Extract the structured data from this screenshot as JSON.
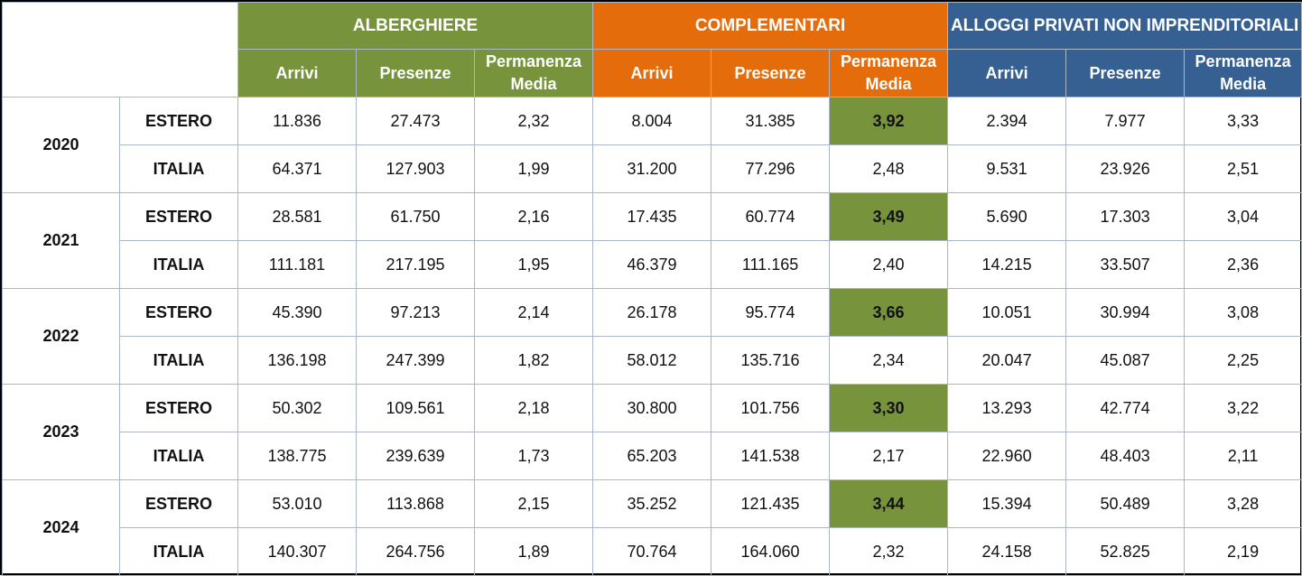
{
  "colors": {
    "alberghiere": "#77933c",
    "complementari": "#e46c0a",
    "alloggi": "#376092",
    "highlight": "#77933c"
  },
  "header": {
    "groups": [
      "ALBERGHIERE",
      "COMPLEMENTARI",
      "ALLOGGI PRIVATI NON IMPRENDITORIALI"
    ],
    "sub": {
      "arrivi": "Arrivi",
      "presenze": "Presenze",
      "permanenza": "Permanenza Media"
    }
  },
  "chart_data": {
    "type": "table",
    "columns": [
      "ALBERGHIERE Arrivi",
      "ALBERGHIERE Presenze",
      "ALBERGHIERE Permanenza Media",
      "COMPLEMENTARI Arrivi",
      "COMPLEMENTARI Presenze",
      "COMPLEMENTARI Permanenza Media",
      "ALLOGGI PRIVATI NON IMPRENDITORIALI Arrivi",
      "ALLOGGI PRIVATI NON IMPRENDITORIALI Presenze",
      "ALLOGGI PRIVATI NON IMPRENDITORIALI Permanenza Media"
    ],
    "years": [
      {
        "year": "2020",
        "rows": [
          {
            "origin": "ESTERO",
            "values": [
              "11.836",
              "27.473",
              "2,32",
              "8.004",
              "31.385",
              "3,92",
              "2.394",
              "7.977",
              "3,33"
            ],
            "highlight": [
              5
            ]
          },
          {
            "origin": "ITALIA",
            "values": [
              "64.371",
              "127.903",
              "1,99",
              "31.200",
              "77.296",
              "2,48",
              "9.531",
              "23.926",
              "2,51"
            ],
            "highlight": []
          }
        ]
      },
      {
        "year": "2021",
        "rows": [
          {
            "origin": "ESTERO",
            "values": [
              "28.581",
              "61.750",
              "2,16",
              "17.435",
              "60.774",
              "3,49",
              "5.690",
              "17.303",
              "3,04"
            ],
            "highlight": [
              5
            ]
          },
          {
            "origin": "ITALIA",
            "values": [
              "111.181",
              "217.195",
              "1,95",
              "46.379",
              "111.165",
              "2,40",
              "14.215",
              "33.507",
              "2,36"
            ],
            "highlight": []
          }
        ]
      },
      {
        "year": "2022",
        "rows": [
          {
            "origin": "ESTERO",
            "values": [
              "45.390",
              "97.213",
              "2,14",
              "26.178",
              "95.774",
              "3,66",
              "10.051",
              "30.994",
              "3,08"
            ],
            "highlight": [
              5
            ]
          },
          {
            "origin": "ITALIA",
            "values": [
              "136.198",
              "247.399",
              "1,82",
              "58.012",
              "135.716",
              "2,34",
              "20.047",
              "45.087",
              "2,25"
            ],
            "highlight": []
          }
        ]
      },
      {
        "year": "2023",
        "rows": [
          {
            "origin": "ESTERO",
            "values": [
              "50.302",
              "109.561",
              "2,18",
              "30.800",
              "101.756",
              "3,30",
              "13.293",
              "42.774",
              "3,22"
            ],
            "highlight": [
              5
            ]
          },
          {
            "origin": "ITALIA",
            "values": [
              "138.775",
              "239.639",
              "1,73",
              "65.203",
              "141.538",
              "2,17",
              "22.960",
              "48.403",
              "2,11"
            ],
            "highlight": []
          }
        ]
      },
      {
        "year": "2024",
        "rows": [
          {
            "origin": "ESTERO",
            "values": [
              "53.010",
              "113.868",
              "2,15",
              "35.252",
              "121.435",
              "3,44",
              "15.394",
              "50.489",
              "3,28"
            ],
            "highlight": [
              5
            ]
          },
          {
            "origin": "ITALIA",
            "values": [
              "140.307",
              "264.756",
              "1,89",
              "70.764",
              "164.060",
              "2,32",
              "24.158",
              "52.825",
              "2,19"
            ],
            "highlight": []
          }
        ]
      }
    ]
  }
}
